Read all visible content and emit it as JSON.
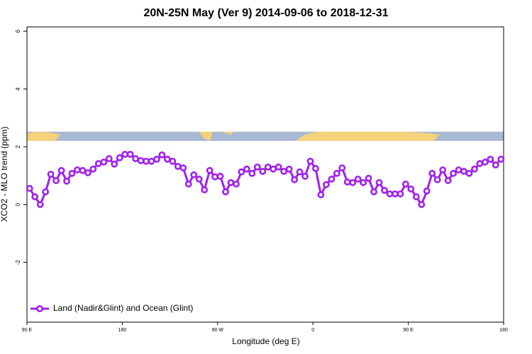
{
  "chart_data": {
    "type": "line",
    "title": "20N-25N May (Ver 9)   2014-09-06 to 2018-12-31",
    "x_label": "Longitude (deg E)",
    "y_label": "XCO2 - MLO trend (ppm)",
    "x": [
      92.5,
      97.5,
      102.5,
      107.5,
      112.5,
      117.5,
      122.5,
      127.5,
      132.5,
      137.5,
      142.5,
      147.5,
      152.5,
      157.5,
      162.5,
      167.5,
      172.5,
      177.5,
      182.5,
      187.5,
      192.5,
      197.5,
      202.5,
      207.5,
      212.5,
      217.5,
      222.5,
      227.5,
      232.5,
      237.5,
      242.5,
      247.5,
      252.5,
      257.5,
      262.5,
      267.5,
      272.5,
      277.5,
      282.5,
      287.5,
      292.5,
      297.5,
      302.5,
      307.5,
      312.5,
      317.5,
      322.5,
      327.5,
      332.5,
      337.5,
      342.5,
      347.5,
      352.5,
      357.5,
      362.5,
      367.5,
      372.5,
      377.5,
      382.5,
      387.5,
      392.5,
      397.5,
      402.5,
      407.5,
      412.5,
      417.5,
      422.5,
      427.5,
      432.5,
      437.5,
      442.5,
      447.5,
      452.5,
      457.5,
      462.5,
      467.5,
      472.5,
      477.5,
      482.5,
      487.5,
      492.5,
      497.5,
      502.5,
      507.5,
      512.5,
      517.5,
      522.5,
      527.5,
      532.5,
      537.5
    ],
    "series": [
      {
        "name": "Land (Nadir&Glint) and Ocean (Glint)",
        "color": "#a020f0",
        "values": [
          0.56,
          0.27,
          0.0,
          0.44,
          1.05,
          0.83,
          1.18,
          0.81,
          1.08,
          1.2,
          1.18,
          1.1,
          1.23,
          1.42,
          1.47,
          1.59,
          1.4,
          1.62,
          1.74,
          1.74,
          1.59,
          1.52,
          1.5,
          1.5,
          1.57,
          1.72,
          1.57,
          1.5,
          1.32,
          1.27,
          0.71,
          1.03,
          0.88,
          0.51,
          1.18,
          0.96,
          0.98,
          0.44,
          0.76,
          0.71,
          1.13,
          1.23,
          1.08,
          1.3,
          1.15,
          1.3,
          1.23,
          1.3,
          1.15,
          1.23,
          0.86,
          1.13,
          0.98,
          1.5,
          1.25,
          0.34,
          0.69,
          0.88,
          1.08,
          1.27,
          0.78,
          0.76,
          0.88,
          0.76,
          0.91,
          0.44,
          0.76,
          0.49,
          0.37,
          0.37,
          0.37,
          0.71,
          0.54,
          0.27,
          0.0,
          0.47,
          1.08,
          0.86,
          1.2,
          0.83,
          1.08,
          1.2,
          1.15,
          1.08,
          1.23,
          1.42,
          1.47,
          1.57,
          1.37,
          1.57
        ]
      }
    ],
    "xlim": [
      90,
      540
    ],
    "xticks": [
      {
        "value": 90,
        "label": "90 E"
      },
      {
        "value": 180,
        "label": "180"
      },
      {
        "value": 270,
        "label": "90 W"
      },
      {
        "value": 360,
        "label": "0"
      },
      {
        "value": 450,
        "label": "90 E"
      },
      {
        "value": 540,
        "label": "180"
      }
    ],
    "ylim": [
      -4.07,
      6.15
    ],
    "yticks": [
      -2,
      0,
      2,
      4,
      6
    ],
    "legend_position": "bottom-left"
  }
}
